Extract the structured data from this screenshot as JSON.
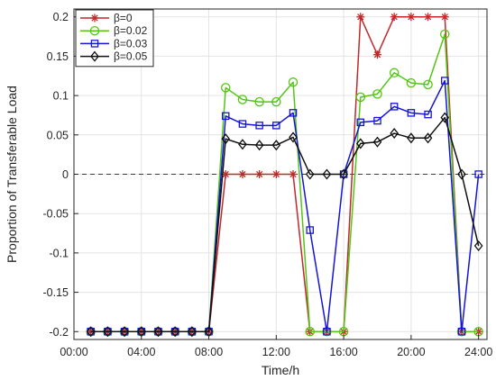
{
  "chart_data": {
    "type": "line",
    "title": "",
    "xlabel": "Time/h",
    "ylabel": "Proportion of Transferable Load",
    "xlim": [
      0,
      24.5
    ],
    "ylim": [
      -0.21,
      0.21
    ],
    "grid": true,
    "legend_position": "top-left",
    "reference_line": {
      "y": 0,
      "style": "dashed",
      "color": "#3c3c3c"
    },
    "x_ticks": [
      {
        "value": 0,
        "label": "00:00"
      },
      {
        "value": 4,
        "label": "04:00"
      },
      {
        "value": 8,
        "label": "08:00"
      },
      {
        "value": 12,
        "label": "12:00"
      },
      {
        "value": 16,
        "label": "16:00"
      },
      {
        "value": 20,
        "label": "20:00"
      },
      {
        "value": 24,
        "label": "24:00"
      }
    ],
    "y_ticks": [
      {
        "value": 0.2,
        "label": "0.2"
      },
      {
        "value": 0.15,
        "label": "0.15"
      },
      {
        "value": 0.1,
        "label": "0.1"
      },
      {
        "value": 0.05,
        "label": "0.05"
      },
      {
        "value": 0,
        "label": "0"
      },
      {
        "value": -0.05,
        "label": "-0.05"
      },
      {
        "value": -0.1,
        "label": "-0.1"
      },
      {
        "value": -0.15,
        "label": "-0.15"
      },
      {
        "value": -0.2,
        "label": "-0.2"
      }
    ],
    "x": [
      1,
      2,
      3,
      4,
      5,
      6,
      7,
      8,
      9,
      10,
      11,
      12,
      13,
      14,
      15,
      16,
      17,
      18,
      19,
      20,
      21,
      22,
      23,
      24
    ],
    "series": [
      {
        "name": "β=0",
        "color": "#c0292b",
        "marker": "asterisk",
        "values": [
          -0.2,
          -0.2,
          -0.2,
          -0.2,
          -0.2,
          -0.2,
          -0.2,
          -0.2,
          0,
          0,
          0,
          0,
          0,
          -0.2,
          -0.2,
          -0.2,
          0.2,
          0.152,
          0.2,
          0.2,
          0.2,
          0.2,
          -0.2,
          -0.2
        ]
      },
      {
        "name": "β=0.02",
        "color": "#55c515",
        "marker": "circle",
        "values": [
          -0.2,
          -0.2,
          -0.2,
          -0.2,
          -0.2,
          -0.2,
          -0.2,
          -0.2,
          0.11,
          0.095,
          0.092,
          0.092,
          0.117,
          -0.2,
          -0.2,
          -0.2,
          0.098,
          0.102,
          0.129,
          0.116,
          0.114,
          0.178,
          -0.2,
          -0.2
        ]
      },
      {
        "name": "β=0.03",
        "color": "#1515d8",
        "marker": "square",
        "values": [
          -0.2,
          -0.2,
          -0.2,
          -0.2,
          -0.2,
          -0.2,
          -0.2,
          -0.2,
          0.074,
          0.064,
          0.062,
          0.062,
          0.078,
          -0.071,
          -0.2,
          0,
          0.066,
          0.068,
          0.086,
          0.078,
          0.076,
          0.119,
          -0.2,
          0
        ]
      },
      {
        "name": "β=0.05",
        "color": "#101010",
        "marker": "diamond",
        "values": [
          -0.2,
          -0.2,
          -0.2,
          -0.2,
          -0.2,
          -0.2,
          -0.2,
          -0.2,
          0.045,
          0.038,
          0.037,
          0.037,
          0.047,
          0,
          0,
          0,
          0.039,
          0.041,
          0.052,
          0.046,
          0.046,
          0.072,
          0,
          -0.091
        ]
      }
    ]
  }
}
